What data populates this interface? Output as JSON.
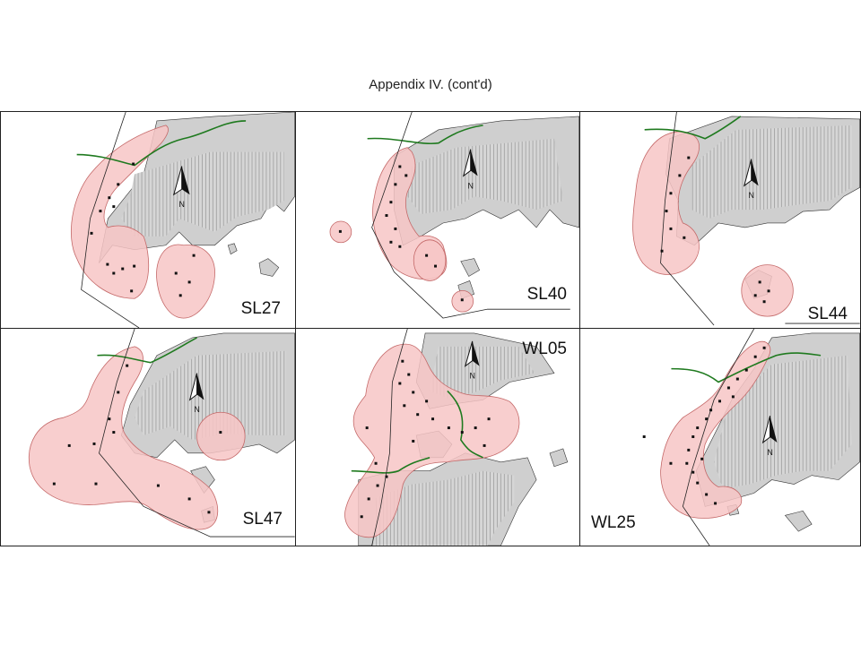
{
  "page": {
    "title": "Appendix IV.  (cont'd)"
  },
  "legend": {
    "north_label": "N"
  },
  "colors": {
    "home_range": "#f7c5c5",
    "home_range_edge": "#c46868",
    "land": "#cfcfcf",
    "water_hatch": "#a8a8a8",
    "road": "#1f7a1f",
    "boundary": "#222222",
    "locations": "#111111"
  },
  "icons": {
    "north": "north-arrow-icon"
  },
  "panels": [
    {
      "id": "SL27",
      "label": "SL27"
    },
    {
      "id": "SL40",
      "label": "SL40"
    },
    {
      "id": "SL44",
      "label": "SL44"
    },
    {
      "id": "SL47",
      "label": "SL47"
    },
    {
      "id": "WL05",
      "label": "WL05"
    },
    {
      "id": "WL25",
      "label": "WL25"
    }
  ]
}
